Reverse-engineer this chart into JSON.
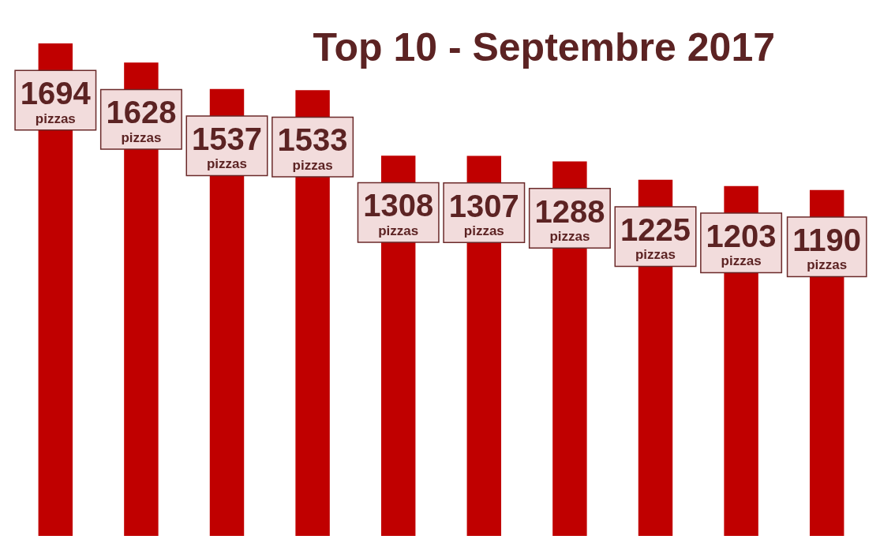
{
  "chart_data": {
    "type": "bar",
    "title": "Top 10 - Septembre 2017",
    "categories": [
      null,
      null,
      null,
      null,
      null,
      null,
      null,
      null,
      null,
      null
    ],
    "values": [
      1694,
      1628,
      1537,
      1533,
      1308,
      1307,
      1288,
      1225,
      1203,
      1190
    ],
    "color": "#c00000",
    "value_labels": [
      "1694\npizzas",
      "1628\npizzas",
      "1537\npizzas",
      "1533\npizzas",
      "1308\npizzas",
      "1307\npizzas",
      "1288\npizzas",
      "1225\npizzas",
      "1203\npizzas",
      "1190\npizzas"
    ]
  }
}
